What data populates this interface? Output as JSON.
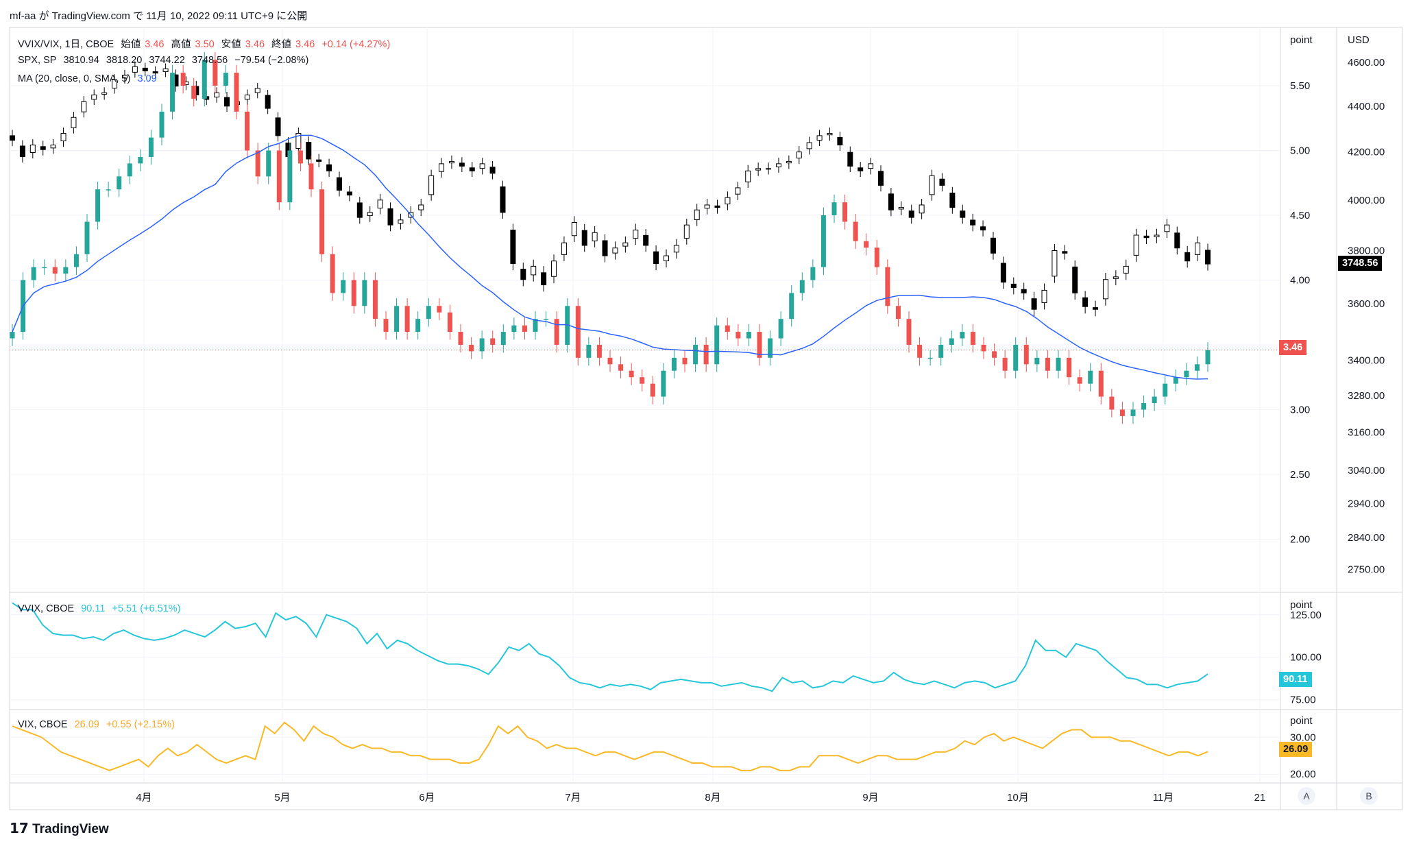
{
  "header": {
    "author": "mf-aa",
    "published_text": "が TradingView.com で 11月 10, 2022 09:11 UTC+9 に公開"
  },
  "footer": {
    "brand": "TradingView",
    "logo_mark": "17"
  },
  "legend": {
    "vvix_vix": {
      "symbol": "VVIX/VIX, 1日, CBOE",
      "open_label": "始値",
      "open": "3.46",
      "high_label": "高値",
      "high": "3.50",
      "low_label": "安値",
      "low": "3.46",
      "close_label": "終値",
      "close": "3.46",
      "change": "+0.14 (+4.27%)"
    },
    "spx": {
      "symbol": "SPX, SP",
      "open": "3810.94",
      "high": "3818.20",
      "low": "3744.22",
      "close": "3748.56",
      "change": "−79.54 (−2.08%)"
    },
    "ma": {
      "label": "MA (20, close, 0, SMA, 5)",
      "value": "3.09"
    },
    "vvix": {
      "symbol": "VVIX, CBOE",
      "value": "90.11",
      "change": "+5.51 (+6.51%)"
    },
    "vix": {
      "symbol": "VIX, CBOE",
      "value": "26.09",
      "change": "+0.55 (+2.15%)"
    }
  },
  "axes": {
    "left_unit": "point",
    "right_unit": "USD",
    "left_ticks": [
      "5.50",
      "5.00",
      "4.50",
      "4.00",
      "3.50",
      "3.00",
      "2.50",
      "2.00"
    ],
    "right_ticks": [
      "4600.00",
      "4400.00",
      "4200.00",
      "4000.00",
      "3800.00",
      "3600.00",
      "3400.00",
      "3280.00",
      "3160.00",
      "3040.00",
      "2940.00",
      "2840.00",
      "2750.00"
    ],
    "vvix_unit": "point",
    "vvix_ticks": [
      "125.00",
      "100.00",
      "75.00"
    ],
    "vix_unit": "point",
    "vix_ticks": [
      "30.00",
      "20.00"
    ],
    "x_ticks": [
      "4月",
      "5月",
      "6月",
      "7月",
      "8月",
      "9月",
      "10月",
      "11月",
      "21"
    ],
    "buttons": [
      "A",
      "B"
    ]
  },
  "badges": {
    "spx_last": "3748.56",
    "ratio_last": "3.46",
    "vvix_last": "90.11",
    "vix_last": "26.09"
  },
  "colors": {
    "up": "#26a69a",
    "down": "#ef5350",
    "ma": "#2962ff",
    "vvix": "#26c6da",
    "vix": "#f9b825",
    "spx": "#000000"
  },
  "chart_data": [
    {
      "type": "candlestick",
      "name": "VVIX/VIX",
      "note_close": "approximate daily closes read from chart",
      "close": [
        3.6,
        4.0,
        4.1,
        4.1,
        4.05,
        4.1,
        4.2,
        4.45,
        4.7,
        4.7,
        4.8,
        4.9,
        4.95,
        5.1,
        5.3,
        5.6,
        5.5,
        5.4,
        5.7,
        5.5,
        5.6,
        5.3,
        5.0,
        4.8,
        5.0,
        4.6,
        5.0,
        4.9,
        4.7,
        4.2,
        3.9,
        4.0,
        3.8,
        4.0,
        3.7,
        3.6,
        3.8,
        3.6,
        3.7,
        3.8,
        3.75,
        3.6,
        3.5,
        3.45,
        3.55,
        3.5,
        3.6,
        3.65,
        3.6,
        3.7,
        3.7,
        3.5,
        3.8,
        3.4,
        3.5,
        3.4,
        3.35,
        3.3,
        3.25,
        3.2,
        3.1,
        3.3,
        3.4,
        3.35,
        3.5,
        3.35,
        3.65,
        3.6,
        3.55,
        3.6,
        3.4,
        3.55,
        3.7,
        3.9,
        4.0,
        4.1,
        4.5,
        4.6,
        4.45,
        4.3,
        4.25,
        4.1,
        3.8,
        3.7,
        3.5,
        3.4,
        3.4,
        3.5,
        3.55,
        3.6,
        3.5,
        3.45,
        3.4,
        3.3,
        3.5,
        3.35,
        3.4,
        3.3,
        3.4,
        3.25,
        3.2,
        3.3,
        3.1,
        3.0,
        2.95,
        3.0,
        3.05,
        3.1,
        3.2,
        3.25,
        3.3,
        3.35,
        3.46
      ],
      "ma20_last": 3.09
    },
    {
      "type": "candlestick",
      "name": "SPX",
      "note_close": "approximate daily closes read from chart",
      "close": [
        4250,
        4180,
        4230,
        4210,
        4230,
        4280,
        4350,
        4420,
        4450,
        4460,
        4520,
        4540,
        4580,
        4560,
        4550,
        4570,
        4490,
        4510,
        4450,
        4430,
        4460,
        4400,
        4420,
        4450,
        4480,
        4390,
        4270,
        4180,
        4280,
        4170,
        4160,
        4120,
        4040,
        4020,
        3930,
        3950,
        4000,
        3900,
        3920,
        3950,
        3980,
        4100,
        4150,
        4160,
        4140,
        4120,
        4150,
        4110,
        3950,
        3750,
        3690,
        3740,
        3670,
        3760,
        3830,
        3910,
        3820,
        3870,
        3780,
        3810,
        3830,
        3880,
        3820,
        3750,
        3780,
        3820,
        3900,
        3960,
        3980,
        3970,
        4010,
        4050,
        4120,
        4130,
        4130,
        4150,
        4160,
        4200,
        4240,
        4270,
        4280,
        4230,
        4140,
        4120,
        4150,
        4060,
        3960,
        3970,
        3930,
        3980,
        4100,
        4060,
        3970,
        3930,
        3900,
        3880,
        3790,
        3680,
        3660,
        3640,
        3580,
        3650,
        3800,
        3790,
        3640,
        3590,
        3580,
        3690,
        3700,
        3740,
        3860,
        3850,
        3860,
        3900,
        3810,
        3760,
        3830,
        3748.56
      ]
    },
    {
      "type": "line",
      "name": "VVIX",
      "ylim": [
        70,
        135
      ],
      "values": [
        132,
        128,
        128,
        119,
        114,
        113,
        113,
        111,
        112,
        110,
        114,
        116,
        113,
        111,
        110,
        111,
        113,
        116,
        114,
        112,
        116,
        121,
        117,
        118,
        120,
        112,
        126,
        122,
        124,
        120,
        112,
        125,
        123,
        121,
        117,
        108,
        114,
        105,
        110,
        108,
        104,
        101,
        98,
        96,
        96,
        95,
        93,
        90,
        97,
        106,
        104,
        108,
        102,
        100,
        95,
        88,
        85,
        84,
        82,
        84,
        83,
        84,
        83,
        81,
        85,
        86,
        87,
        86,
        85,
        85,
        83,
        84,
        85,
        83,
        82,
        80,
        88,
        85,
        86,
        82,
        83,
        86,
        85,
        89,
        87,
        85,
        86,
        91,
        87,
        85,
        84,
        86,
        84,
        82,
        85,
        86,
        85,
        82,
        84,
        86,
        95,
        110,
        104,
        104,
        100,
        108,
        106,
        104,
        98,
        93,
        88,
        87,
        84,
        84,
        82,
        84,
        85,
        86,
        90.11
      ]
    },
    {
      "type": "line",
      "name": "VIX",
      "ylim": [
        18,
        36
      ],
      "values": [
        33,
        32,
        31,
        30,
        28,
        26,
        25,
        24,
        23,
        22,
        21,
        22,
        23,
        24,
        22,
        25,
        27,
        25,
        26,
        28,
        26,
        24,
        23,
        24,
        25,
        24,
        33,
        31,
        34,
        32,
        29,
        33,
        31,
        30,
        28,
        27,
        28,
        27,
        27,
        26,
        26,
        25,
        25,
        24,
        24,
        24,
        23,
        23,
        24,
        28,
        33,
        31,
        33,
        30,
        29,
        27,
        28,
        27,
        27,
        26,
        25,
        26,
        26,
        25,
        24,
        25,
        26,
        26,
        25,
        24,
        23,
        23,
        22,
        22,
        22,
        21,
        21,
        22,
        22,
        21,
        21,
        22,
        22,
        25,
        25,
        25,
        24,
        23,
        24,
        25,
        25,
        24,
        24,
        24,
        25,
        26,
        26,
        27,
        29,
        28,
        30,
        31,
        29,
        30,
        29,
        28,
        27,
        29,
        31,
        32,
        32,
        30,
        30,
        30,
        29,
        29,
        28,
        27,
        26,
        25,
        26,
        26,
        25,
        26.09
      ]
    }
  ]
}
